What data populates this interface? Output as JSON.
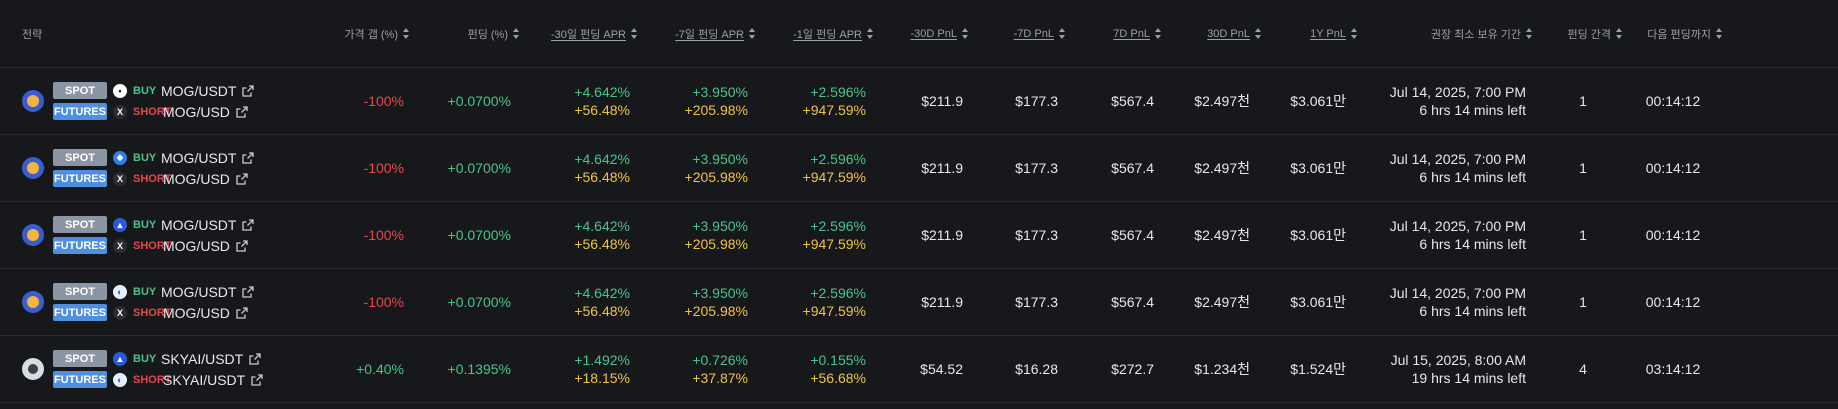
{
  "columns": {
    "strategy": "전략",
    "price_gap": "가격 갭 (%)",
    "funding": "펀딩 (%)",
    "apr30": "-30일 펀딩 APR",
    "apr7": "-7일 펀딩 APR",
    "apr1": "-1일 펀딩 APR",
    "pnl30": "-30D PnL",
    "pnl7": "-7D PnL",
    "pnl7f": "7D PnL",
    "pnl30f": "30D PnL",
    "pnl1y": "1Y PnL",
    "hold": "권장 최소 보유 기간",
    "interval": "펀딩 간격",
    "next": "다음 펀딩까지"
  },
  "icons": {
    "external_link": "external-link-icon",
    "sort": "sort-arrows-icon"
  },
  "colors": {
    "positive": "#4cc38a",
    "negative": "#e5484d",
    "apr_yield": "#f0c24a",
    "spot_badge": "#8c95a3",
    "futures_badge": "#4f8fe0"
  },
  "rows": [
    {
      "coin": "mog",
      "spot": {
        "badge": "SPOT",
        "exchange_icon": "exchange-a-icon",
        "exchange_mark": "▪",
        "exchange_bg": "#ffffff",
        "exchange_fg": "#111111",
        "side": "BUY",
        "pair": "MOG/USDT"
      },
      "futures": {
        "badge": "FUTURES",
        "exchange_icon": "x-exchange-icon",
        "exchange_mark": "X",
        "exchange_bg": "#2a2c31",
        "exchange_fg": "#ffffff",
        "side": "SHORT",
        "pair": "MOG/USD"
      },
      "price_gap": "-100%",
      "price_gap_positive": false,
      "funding": "+0.0700%",
      "apr30": {
        "rate": "+4.642%",
        "apr": "+56.48%"
      },
      "apr7": {
        "rate": "+3.950%",
        "apr": "+205.98%"
      },
      "apr1": {
        "rate": "+2.596%",
        "apr": "+947.59%"
      },
      "pnl30": "$211.9",
      "pnl7": "$177.3",
      "pnl7f": "$567.4",
      "pnl30f": "$2.497천",
      "pnl1y": "$3.061만",
      "hold_date": "Jul 14, 2025, 7:00 PM",
      "hold_left": "6 hrs 14 mins left",
      "interval": "1",
      "next": "00:14:12"
    },
    {
      "coin": "mog",
      "spot": {
        "badge": "SPOT",
        "exchange_icon": "exchange-b-icon",
        "exchange_mark": "◆",
        "exchange_bg": "#2f7fe6",
        "exchange_fg": "#ffffff",
        "side": "BUY",
        "pair": "MOG/USDT"
      },
      "futures": {
        "badge": "FUTURES",
        "exchange_icon": "x-exchange-icon",
        "exchange_mark": "X",
        "exchange_bg": "#2a2c31",
        "exchange_fg": "#ffffff",
        "side": "SHORT",
        "pair": "MOG/USD"
      },
      "price_gap": "-100%",
      "price_gap_positive": false,
      "funding": "+0.0700%",
      "apr30": {
        "rate": "+4.642%",
        "apr": "+56.48%"
      },
      "apr7": {
        "rate": "+3.950%",
        "apr": "+205.98%"
      },
      "apr1": {
        "rate": "+2.596%",
        "apr": "+947.59%"
      },
      "pnl30": "$211.9",
      "pnl7": "$177.3",
      "pnl7f": "$567.4",
      "pnl30f": "$2.497천",
      "pnl1y": "$3.061만",
      "hold_date": "Jul 14, 2025, 7:00 PM",
      "hold_left": "6 hrs 14 mins left",
      "interval": "1",
      "next": "00:14:12"
    },
    {
      "coin": "mog",
      "spot": {
        "badge": "SPOT",
        "exchange_icon": "exchange-c-icon",
        "exchange_mark": "▲",
        "exchange_bg": "#2a5bd7",
        "exchange_fg": "#ffffff",
        "side": "BUY",
        "pair": "MOG/USDT"
      },
      "futures": {
        "badge": "FUTURES",
        "exchange_icon": "x-exchange-icon",
        "exchange_mark": "X",
        "exchange_bg": "#2a2c31",
        "exchange_fg": "#ffffff",
        "side": "SHORT",
        "pair": "MOG/USD"
      },
      "price_gap": "-100%",
      "price_gap_positive": false,
      "funding": "+0.0700%",
      "apr30": {
        "rate": "+4.642%",
        "apr": "+56.48%"
      },
      "apr7": {
        "rate": "+3.950%",
        "apr": "+205.98%"
      },
      "apr1": {
        "rate": "+2.596%",
        "apr": "+947.59%"
      },
      "pnl30": "$211.9",
      "pnl7": "$177.3",
      "pnl7f": "$567.4",
      "pnl30f": "$2.497천",
      "pnl1y": "$3.061만",
      "hold_date": "Jul 14, 2025, 7:00 PM",
      "hold_left": "6 hrs 14 mins left",
      "interval": "1",
      "next": "00:14:12"
    },
    {
      "coin": "mog",
      "spot": {
        "badge": "SPOT",
        "exchange_icon": "exchange-d-icon",
        "exchange_mark": "◐",
        "exchange_bg": "#e6f0ff",
        "exchange_fg": "#2a5bd7",
        "side": "BUY",
        "pair": "MOG/USDT"
      },
      "futures": {
        "badge": "FUTURES",
        "exchange_icon": "x-exchange-icon",
        "exchange_mark": "X",
        "exchange_bg": "#2a2c31",
        "exchange_fg": "#ffffff",
        "side": "SHORT",
        "pair": "MOG/USD"
      },
      "price_gap": "-100%",
      "price_gap_positive": false,
      "funding": "+0.0700%",
      "apr30": {
        "rate": "+4.642%",
        "apr": "+56.48%"
      },
      "apr7": {
        "rate": "+3.950%",
        "apr": "+205.98%"
      },
      "apr1": {
        "rate": "+2.596%",
        "apr": "+947.59%"
      },
      "pnl30": "$211.9",
      "pnl7": "$177.3",
      "pnl7f": "$567.4",
      "pnl30f": "$2.497천",
      "pnl1y": "$3.061만",
      "hold_date": "Jul 14, 2025, 7:00 PM",
      "hold_left": "6 hrs 14 mins left",
      "interval": "1",
      "next": "00:14:12"
    },
    {
      "coin": "sky",
      "spot": {
        "badge": "SPOT",
        "exchange_icon": "exchange-c-icon",
        "exchange_mark": "▲",
        "exchange_bg": "#2a5bd7",
        "exchange_fg": "#ffffff",
        "side": "BUY",
        "pair": "SKYAI/USDT"
      },
      "futures": {
        "badge": "FUTURES",
        "exchange_icon": "exchange-d-icon",
        "exchange_mark": "◐",
        "exchange_bg": "#e6f0ff",
        "exchange_fg": "#2a5bd7",
        "side": "SHORT",
        "pair": "SKYAI/USDT"
      },
      "price_gap": "+0.40%",
      "price_gap_positive": true,
      "funding": "+0.1395%",
      "apr30": {
        "rate": "+1.492%",
        "apr": "+18.15%"
      },
      "apr7": {
        "rate": "+0.726%",
        "apr": "+37.87%"
      },
      "apr1": {
        "rate": "+0.155%",
        "apr": "+56.68%"
      },
      "pnl30": "$54.52",
      "pnl7": "$16.28",
      "pnl7f": "$272.7",
      "pnl30f": "$1.234천",
      "pnl1y": "$1.524만",
      "hold_date": "Jul 15, 2025, 8:00 AM",
      "hold_left": "19 hrs 14 mins left",
      "interval": "4",
      "next": "03:14:12"
    }
  ]
}
